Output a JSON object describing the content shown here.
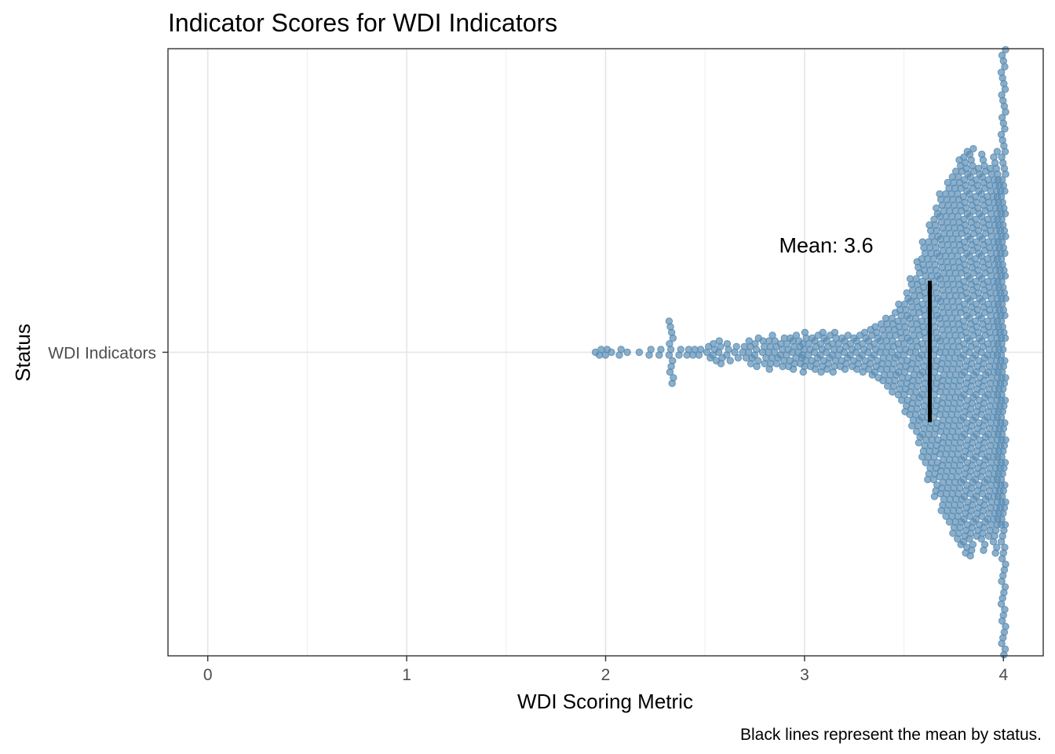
{
  "chart_data": {
    "type": "scatter",
    "subtype": "beeswarm",
    "title": "Indicator Scores for WDI Indicators",
    "xlabel": "WDI Scoring Metric",
    "ylabel": "Status",
    "caption": "Black lines represent the mean by status.",
    "xlim": [
      -0.2,
      4.2
    ],
    "x_ticks": [
      0,
      1,
      2,
      3,
      4
    ],
    "x_tick_labels": [
      "0",
      "1",
      "2",
      "3",
      "4"
    ],
    "grid": true,
    "legend": "none",
    "categories": [
      "WDI Indicators"
    ],
    "series": [
      {
        "category": "WDI Indicators",
        "color": "#5b8db4",
        "mean": 3.63,
        "mean_label": "Mean: 3.6",
        "distribution": [
          {
            "x": 1.96,
            "n": 1
          },
          {
            "x": 1.98,
            "n": 2
          },
          {
            "x": 2.01,
            "n": 2
          },
          {
            "x": 2.04,
            "n": 1
          },
          {
            "x": 2.08,
            "n": 2
          },
          {
            "x": 2.12,
            "n": 1
          },
          {
            "x": 2.18,
            "n": 1
          },
          {
            "x": 2.23,
            "n": 2
          },
          {
            "x": 2.28,
            "n": 2
          },
          {
            "x": 2.33,
            "n": 12
          },
          {
            "x": 2.38,
            "n": 2
          },
          {
            "x": 2.42,
            "n": 2
          },
          {
            "x": 2.45,
            "n": 2
          },
          {
            "x": 2.48,
            "n": 2
          },
          {
            "x": 2.52,
            "n": 3
          },
          {
            "x": 2.55,
            "n": 4
          },
          {
            "x": 2.58,
            "n": 5
          },
          {
            "x": 2.62,
            "n": 4
          },
          {
            "x": 2.66,
            "n": 3
          },
          {
            "x": 2.7,
            "n": 3
          },
          {
            "x": 2.73,
            "n": 5
          },
          {
            "x": 2.76,
            "n": 6
          },
          {
            "x": 2.8,
            "n": 5
          },
          {
            "x": 2.83,
            "n": 7
          },
          {
            "x": 2.86,
            "n": 5
          },
          {
            "x": 2.89,
            "n": 6
          },
          {
            "x": 2.92,
            "n": 6
          },
          {
            "x": 2.95,
            "n": 7
          },
          {
            "x": 2.98,
            "n": 5
          },
          {
            "x": 3.0,
            "n": 8
          },
          {
            "x": 3.03,
            "n": 6
          },
          {
            "x": 3.06,
            "n": 7
          },
          {
            "x": 3.09,
            "n": 8
          },
          {
            "x": 3.12,
            "n": 7
          },
          {
            "x": 3.15,
            "n": 8
          },
          {
            "x": 3.18,
            "n": 6
          },
          {
            "x": 3.21,
            "n": 7
          },
          {
            "x": 3.24,
            "n": 6
          },
          {
            "x": 3.27,
            "n": 7
          },
          {
            "x": 3.3,
            "n": 8
          },
          {
            "x": 3.33,
            "n": 9
          },
          {
            "x": 3.36,
            "n": 10
          },
          {
            "x": 3.39,
            "n": 11
          },
          {
            "x": 3.42,
            "n": 13
          },
          {
            "x": 3.45,
            "n": 15
          },
          {
            "x": 3.48,
            "n": 18
          },
          {
            "x": 3.51,
            "n": 22
          },
          {
            "x": 3.54,
            "n": 27
          },
          {
            "x": 3.57,
            "n": 33
          },
          {
            "x": 3.6,
            "n": 40
          },
          {
            "x": 3.63,
            "n": 46
          },
          {
            "x": 3.66,
            "n": 52
          },
          {
            "x": 3.69,
            "n": 57
          },
          {
            "x": 3.72,
            "n": 61
          },
          {
            "x": 3.75,
            "n": 65
          },
          {
            "x": 3.78,
            "n": 69
          },
          {
            "x": 3.81,
            "n": 72
          },
          {
            "x": 3.84,
            "n": 73
          },
          {
            "x": 3.87,
            "n": 66
          },
          {
            "x": 3.9,
            "n": 71
          },
          {
            "x": 3.93,
            "n": 66
          },
          {
            "x": 3.96,
            "n": 72
          },
          {
            "x": 3.98,
            "n": 62
          },
          {
            "x": 4.0,
            "n": 200
          }
        ]
      }
    ]
  }
}
